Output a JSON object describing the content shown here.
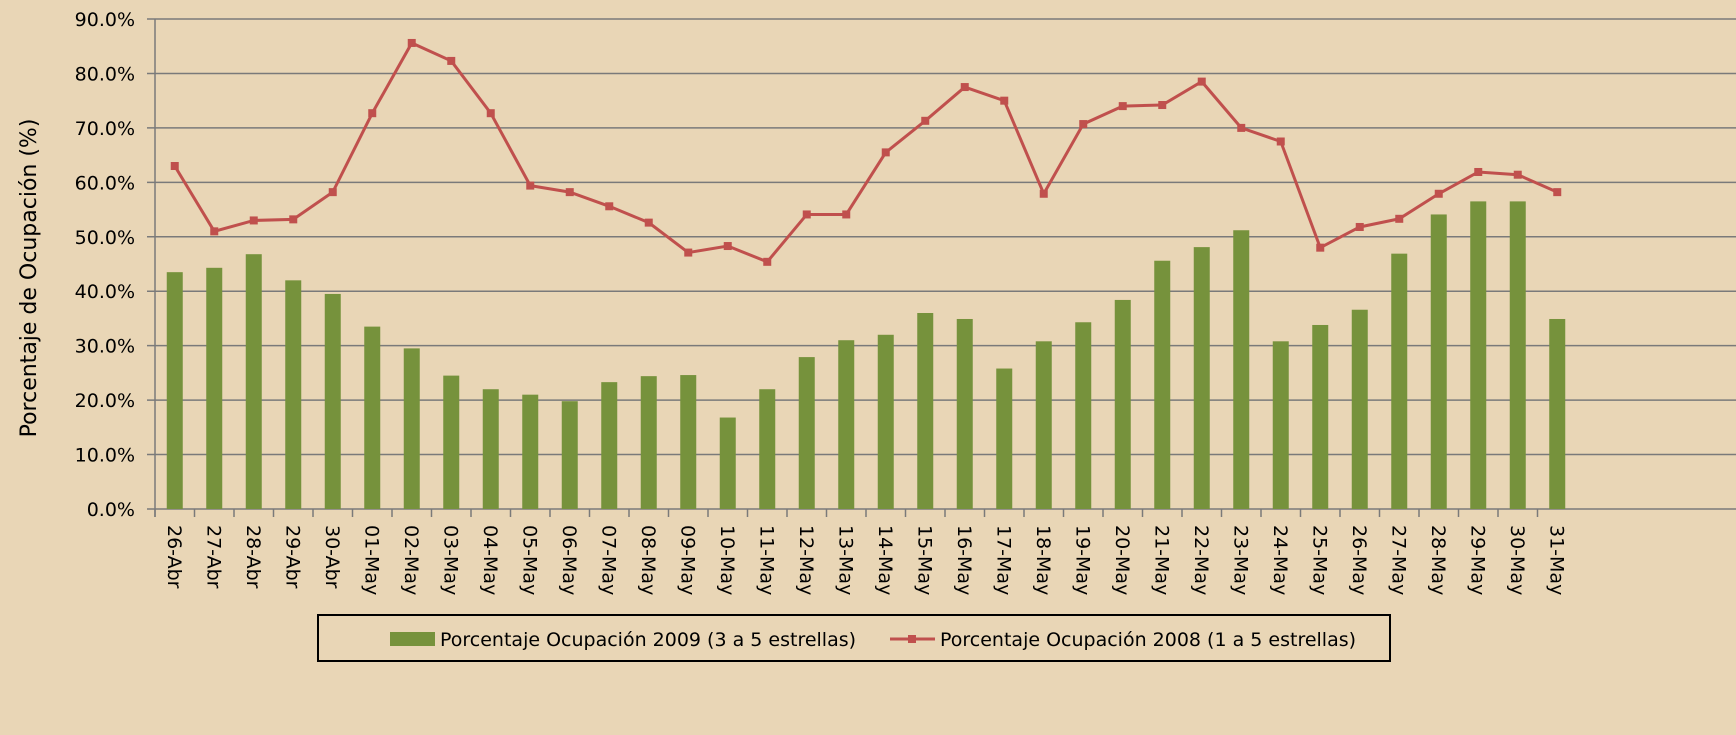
{
  "chart_data": {
    "type": "bar-line",
    "y_label": "Porcentaje de Ocupación (%)",
    "categories": [
      "26-Abr",
      "27-Abr",
      "28-Abr",
      "29-Abr",
      "30-Abr",
      "01-May",
      "02-May",
      "03-May",
      "04-May",
      "05-May",
      "06-May",
      "07-May",
      "08-May",
      "09-May",
      "10-May",
      "11-May",
      "12-May",
      "13-May",
      "14-May",
      "15-May",
      "16-May",
      "17-May",
      "18-May",
      "19-May",
      "20-May",
      "21-May",
      "22-May",
      "23-May",
      "24-May",
      "25-May",
      "26-May",
      "27-May",
      "28-May",
      "29-May",
      "30-May",
      "31-May"
    ],
    "series": [
      {
        "name": "Porcentaje Ocupación 2009 (3 a 5 estrellas)",
        "type": "bar",
        "color": "#76923c",
        "values": [
          43.5,
          44.3,
          46.8,
          42,
          39.5,
          33.5,
          29.5,
          24.5,
          22,
          21,
          19.8,
          23.3,
          24.4,
          24.6,
          16.8,
          22,
          27.9,
          31,
          32,
          36,
          34.9,
          25.8,
          30.8,
          34.3,
          38.4,
          45.6,
          48.1,
          51.2,
          30.8,
          33.8,
          36.6,
          46.9,
          54.1,
          56.5,
          56.5,
          34.9
        ]
      },
      {
        "name": "Porcentaje Ocupación 2008 (1 a 5 estrellas)",
        "type": "line",
        "color": "#c0504d",
        "values": [
          63,
          51,
          53,
          53.2,
          58.2,
          72.7,
          85.6,
          82.3,
          72.7,
          59.4,
          58.2,
          55.6,
          52.6,
          47.1,
          48.3,
          45.4,
          54.1,
          54.1,
          65.5,
          71.3,
          77.5,
          75,
          57.9,
          70.7,
          74,
          74.2,
          78.5,
          70,
          67.5,
          48,
          51.8,
          53.3,
          57.9,
          61.9,
          61.4,
          58.2
        ]
      }
    ],
    "ylim": [
      0,
      90
    ],
    "yticks": [
      {
        "value": 0,
        "label": "0.0%"
      },
      {
        "value": 10,
        "label": "10.0%"
      },
      {
        "value": 20,
        "label": "20.0%"
      },
      {
        "value": 30,
        "label": "30.0%"
      },
      {
        "value": 40,
        "label": "40.0%"
      },
      {
        "value": 50,
        "label": "50.0%"
      },
      {
        "value": 60,
        "label": "60.0%"
      },
      {
        "value": 70,
        "label": "70.0%"
      },
      {
        "value": 80,
        "label": "80.0%"
      },
      {
        "value": 90,
        "label": "90.0%"
      }
    ],
    "grid": true
  }
}
